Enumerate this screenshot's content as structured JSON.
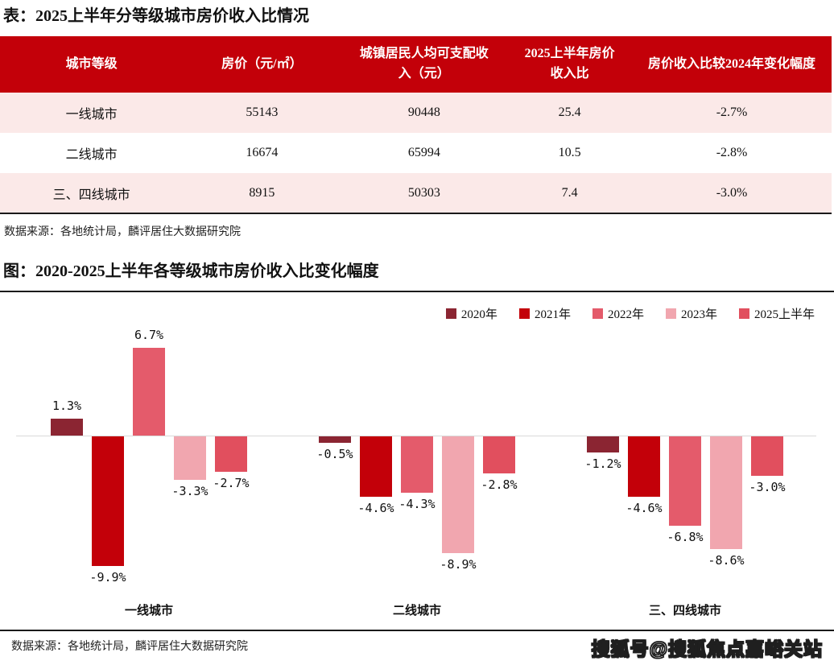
{
  "colors": {
    "header_red": "#C30009",
    "row_pink": "#FBE9E8",
    "zero_line": "#D9D9D9",
    "divider": "#1A1A1A",
    "text": "#111111"
  },
  "table_section": {
    "title": "表：2025上半年分等级城市房价收入比情况",
    "columns": [
      "城市等级",
      "房价（元/㎡）",
      "城镇居民人均可支配收入（元）",
      "2025上半年房价收入比",
      "房价收入比较2024年变化幅度"
    ],
    "row_keys": [
      "tier",
      "price",
      "income",
      "ratio",
      "change"
    ],
    "rows": [
      {
        "tier": "一线城市",
        "price": "55143",
        "income": "90448",
        "ratio": "25.4",
        "change": "-2.7%"
      },
      {
        "tier": "二线城市",
        "price": "16674",
        "income": "65994",
        "ratio": "10.5",
        "change": "-2.8%"
      },
      {
        "tier": "三、四线城市",
        "price": "8915",
        "income": "50303",
        "ratio": "7.4",
        "change": "-3.0%"
      }
    ],
    "source": "数据来源：各地统计局，麟评居住大数据研究院"
  },
  "chart_section": {
    "title": "图：2020-2025上半年各等级城市房价收入比变化幅度",
    "source": "数据来源：各地统计局，麟评居住大数据研究院",
    "watermark": "搜狐号@搜狐焦点嘉峪关站"
  },
  "chart_data": {
    "type": "bar",
    "title": "2020-2025上半年各等级城市房价收入比变化幅度",
    "categories": [
      "一线城市",
      "二线城市",
      "三、四线城市"
    ],
    "series": [
      {
        "name": "2020年",
        "color": "#8B2532",
        "values": [
          1.3,
          -0.5,
          -1.2
        ]
      },
      {
        "name": "2021年",
        "color": "#C30009",
        "values": [
          -9.9,
          -4.6,
          -4.6
        ]
      },
      {
        "name": "2022年",
        "color": "#E45B6B",
        "values": [
          6.7,
          -4.3,
          -6.8
        ]
      },
      {
        "name": "2023年",
        "color": "#F1A6AF",
        "values": [
          -3.3,
          -8.9,
          -8.6
        ]
      },
      {
        "name": "2025上半年",
        "color": "#E14F5E",
        "values": [
          -2.7,
          -2.8,
          -3.0
        ]
      }
    ],
    "value_suffix": "%",
    "xlabel": "",
    "ylabel": "",
    "ylim": [
      -11,
      8.5
    ],
    "grid": false,
    "zero_axis": true,
    "legend_position": "top-right",
    "data_labels": true
  }
}
